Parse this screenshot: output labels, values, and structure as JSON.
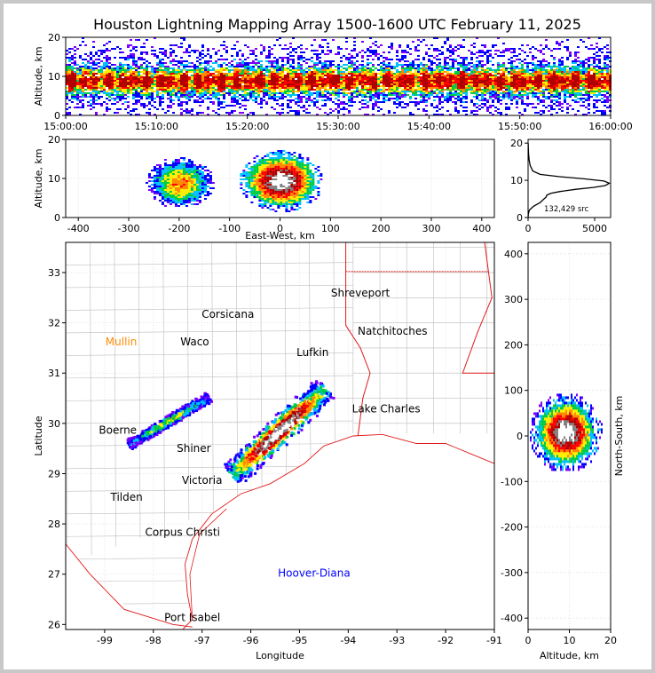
{
  "title": "Houston Lightning Mapping Array 1500-1600 UTC February 11, 2025",
  "colors": {
    "frame": "#000000",
    "grid": "#dddddd",
    "county": "#bdbdbd",
    "state_border": "#e11a1a",
    "coast": "#e11a1a",
    "density_scale": [
      "#7a00ff",
      "#0000ff",
      "#00c0ff",
      "#00cc44",
      "#ffee00",
      "#ff8800",
      "#ff0000",
      "#b00000",
      "#808080",
      "#ffffff"
    ]
  },
  "chart_data": [
    {
      "id": "time-altitude",
      "type": "heatmap",
      "xlabel": "",
      "ylabel": "Altitude, km",
      "x_ticks": [
        "15:00:00",
        "15:10:00",
        "15:20:00",
        "15:30:00",
        "15:40:00",
        "15:50:00",
        "16:00:00"
      ],
      "xlim": [
        "15:00:00",
        "16:00:00"
      ],
      "ylim": [
        0,
        20
      ],
      "y_ticks": [
        0,
        10,
        20
      ],
      "peak_altitude_km": 9
    },
    {
      "id": "eastwest-altitude",
      "type": "heatmap",
      "xlabel": "East-West, km",
      "ylabel": "Altitude, km",
      "xlim": [
        -425,
        425
      ],
      "x_ticks": [
        -400,
        -300,
        -200,
        -100,
        0,
        100,
        200,
        300,
        400
      ],
      "ylim": [
        0,
        20
      ],
      "y_ticks": [
        0,
        10,
        20
      ],
      "clusters": [
        {
          "x_center_km": -200,
          "x_halfwidth_km": 60,
          "alt_center_km": 9,
          "alt_halfheight_km": 6,
          "intensity": 0.6
        },
        {
          "x_center_km": 0,
          "x_halfwidth_km": 75,
          "alt_center_km": 9.5,
          "alt_halfheight_km": 7,
          "intensity": 1.0
        }
      ]
    },
    {
      "id": "altitude-histogram",
      "type": "line",
      "xlim": [
        0,
        6200
      ],
      "x_ticks": [
        0,
        5000
      ],
      "ylim": [
        0,
        21
      ],
      "y_ticks": [
        0,
        10,
        20
      ],
      "annotation": "132,429 src",
      "x": [
        0,
        20,
        100,
        400,
        900,
        1200,
        1350,
        1400,
        1700,
        2400,
        3600,
        4900,
        5800,
        6100,
        5700,
        4200,
        2300,
        900,
        350,
        150,
        80,
        40,
        20,
        10
      ],
      "y": [
        0,
        1,
        2,
        3,
        4,
        5,
        5.5,
        6,
        6.5,
        7,
        7.6,
        8.1,
        8.6,
        9.2,
        9.8,
        10.4,
        11,
        11.6,
        12.5,
        14,
        15.5,
        17,
        18.5,
        20
      ]
    },
    {
      "id": "plan-view",
      "type": "heatmap",
      "xlabel": "Longitude",
      "ylabel": "Latitude",
      "xlim": [
        -99.8,
        -91
      ],
      "ylim": [
        25.9,
        33.6
      ],
      "x_ticks": [
        -99,
        -98,
        -97,
        -96,
        -95,
        -94,
        -93,
        -92,
        -91
      ],
      "y_ticks": [
        26,
        27,
        28,
        29,
        30,
        31,
        32,
        33
      ],
      "cities": [
        {
          "name": "Shreveport",
          "lon": -93.75,
          "lat": 32.52,
          "color": "#000000"
        },
        {
          "name": "Corsicana",
          "lon": -96.47,
          "lat": 32.1,
          "color": "#000000"
        },
        {
          "name": "Natchitoches",
          "lon": -93.09,
          "lat": 31.76,
          "color": "#000000"
        },
        {
          "name": "Mullin",
          "lon": -98.66,
          "lat": 31.55,
          "color": "#ff8c00"
        },
        {
          "name": "Waco",
          "lon": -97.15,
          "lat": 31.55,
          "color": "#000000"
        },
        {
          "name": "Lufkin",
          "lon": -94.73,
          "lat": 31.34,
          "color": "#000000"
        },
        {
          "name": "Lake Charles",
          "lon": -93.22,
          "lat": 30.22,
          "color": "#000000"
        },
        {
          "name": "Boerne",
          "lon": -98.73,
          "lat": 29.79,
          "color": "#000000"
        },
        {
          "name": "Shiner",
          "lon": -97.17,
          "lat": 29.43,
          "color": "#000000"
        },
        {
          "name": "Victoria",
          "lon": -97.0,
          "lat": 28.8,
          "color": "#000000"
        },
        {
          "name": "Tilden",
          "lon": -98.55,
          "lat": 28.46,
          "color": "#000000"
        },
        {
          "name": "Corpus Christi",
          "lon": -97.4,
          "lat": 27.76,
          "color": "#000000"
        },
        {
          "name": "Hoover-Diana",
          "lon": -94.7,
          "lat": 26.95,
          "color": "#0000ff"
        },
        {
          "name": "Port Isabel",
          "lon": -97.2,
          "lat": 26.07,
          "color": "#000000"
        }
      ],
      "clusters": [
        {
          "lon": -97.7,
          "lat": 30.07,
          "len_deg": 1.9,
          "width_deg": 0.12,
          "angle_deg": -30,
          "intensity": 0.45
        },
        {
          "lon": -95.45,
          "lat": 29.85,
          "len_deg": 2.6,
          "width_deg": 0.3,
          "angle_deg": -42,
          "intensity": 1.0
        }
      ]
    },
    {
      "id": "altitude-northsouth",
      "type": "heatmap",
      "xlabel": "Altitude, km",
      "ylabel": "North-South, km",
      "xlim": [
        0,
        20
      ],
      "x_ticks": [
        0,
        10,
        20
      ],
      "ylim": [
        -425,
        425
      ],
      "y_ticks": [
        -400,
        -300,
        -200,
        -100,
        0,
        100,
        200,
        300,
        400
      ],
      "clusters": [
        {
          "alt_center_km": 9,
          "alt_halfwidth_km": 7,
          "ns_center_km": 10,
          "ns_halfheight_km": 70,
          "intensity": 1.0
        }
      ]
    }
  ]
}
